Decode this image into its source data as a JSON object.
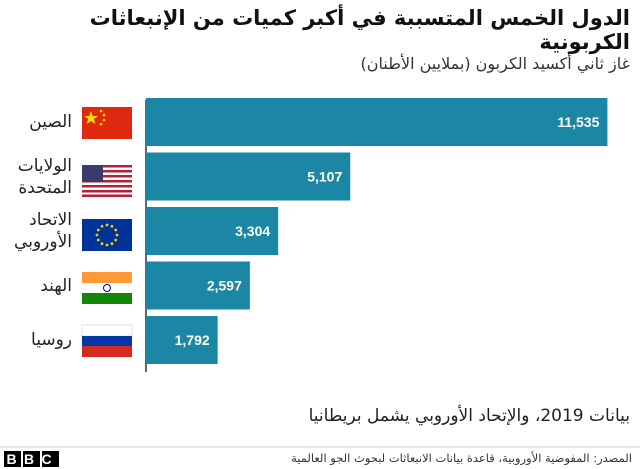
{
  "chart_data": {
    "type": "bar",
    "orientation": "horizontal",
    "title": "الدول الخمس المتسببة في أكبر كميات من الإنبعاثات الكربونية",
    "subtitle": "غاز ثاني أكسيد الكربون (بملايين الأطنان)",
    "categories": [
      "الصين",
      "الولايات المتحدة",
      "الاتحاد الأوروبي",
      "الهند",
      "روسيا"
    ],
    "values": [
      11535,
      5107,
      3304,
      2597,
      1792
    ],
    "value_labels": [
      "11,535",
      "5,107",
      "3,304",
      "2,597",
      "1,792"
    ],
    "color": "#1b87a5",
    "note": "بيانات 2019، والإتحاد الأوروبي يشمل بريطانيا",
    "source": "المصدر: المفوضية الأوروبية، قاعدة بيانات الانبعاثات لبحوث الجو العالمية",
    "logo": "BBC"
  }
}
